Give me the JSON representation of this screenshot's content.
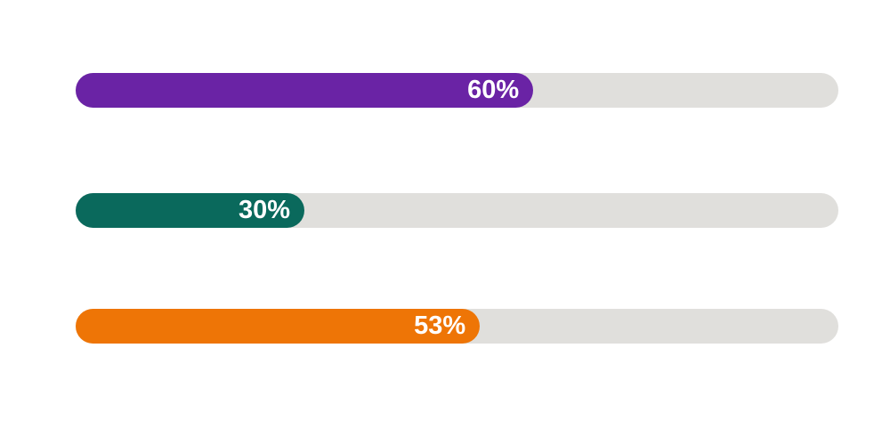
{
  "chart_data": {
    "type": "bar",
    "orientation": "horizontal",
    "title": "",
    "xlabel": "",
    "ylabel": "",
    "xlim": [
      0,
      100
    ],
    "grid": false,
    "legend": false,
    "values": [
      60,
      30,
      53
    ],
    "value_labels": [
      "60%",
      "30%",
      "53%"
    ],
    "bar_colors": [
      "#6a23a5",
      "#0a695c",
      "#ee7506"
    ],
    "track_color": "#e0dfdc",
    "label_color": "#ffffff"
  },
  "bars": [
    {
      "label": "60%",
      "percent": 60,
      "color": "#6a23a5"
    },
    {
      "label": "30%",
      "percent": 30,
      "color": "#0a695c"
    },
    {
      "label": "53%",
      "percent": 53,
      "color": "#ee7506"
    }
  ]
}
